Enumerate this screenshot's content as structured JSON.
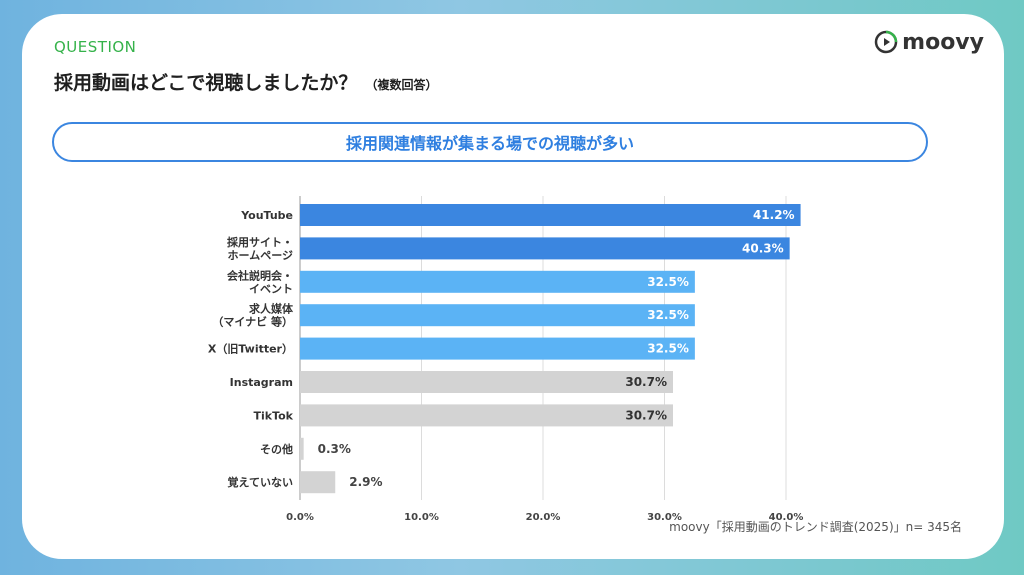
{
  "header": {
    "question_label": "QUESTION",
    "title": "採用動画はどこで視聴しましたか？",
    "title_note": "（複数回答）",
    "logo_text": "moovy"
  },
  "banner": {
    "text": "採用関連情報が集まる場での視聴が多い"
  },
  "source": "moovy「採用動画のトレンド調査(2025)」n= 345名",
  "colors": {
    "dark_blue": "#3b86e0",
    "light_blue": "#5bb3f5",
    "gray": "#d3d3d3",
    "accent_green": "#35b24a"
  },
  "chart_data": {
    "type": "bar",
    "orientation": "horizontal",
    "categories": [
      [
        "YouTube"
      ],
      [
        "採用サイト・",
        "ホームページ"
      ],
      [
        "会社説明会・",
        "イベント"
      ],
      [
        "求人媒体",
        "（マイナビ 等）"
      ],
      [
        "X（旧Twitter）"
      ],
      [
        "Instagram"
      ],
      [
        "TikTok"
      ],
      [
        "その他"
      ],
      [
        "覚えていない"
      ]
    ],
    "values": [
      41.2,
      40.3,
      32.5,
      32.5,
      32.5,
      30.7,
      30.7,
      0.3,
      2.9
    ],
    "value_labels": [
      "41.2%",
      "40.3%",
      "32.5%",
      "32.5%",
      "32.5%",
      "30.7%",
      "30.7%",
      "0.3%",
      "2.9%"
    ],
    "bar_colors": [
      "#3b86e0",
      "#3b86e0",
      "#5bb3f5",
      "#5bb3f5",
      "#5bb3f5",
      "#d3d3d3",
      "#d3d3d3",
      "#d3d3d3",
      "#d3d3d3"
    ],
    "xlim": [
      0,
      40
    ],
    "xticks": [
      "0.0%",
      "10.0%",
      "20.0%",
      "30.0%",
      "40.0%"
    ],
    "grid": true
  }
}
